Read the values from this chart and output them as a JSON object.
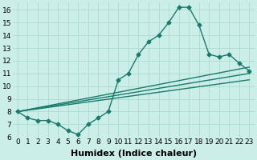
{
  "title": "",
  "xlabel": "Humidex (Indice chaleur)",
  "ylabel": "",
  "bg_color": "#cceee8",
  "line_color": "#1a7a6e",
  "grid_color": "#aaddcc",
  "xlim": [
    -0.5,
    23.5
  ],
  "ylim": [
    6,
    16.6
  ],
  "xticks": [
    0,
    1,
    2,
    3,
    4,
    5,
    6,
    7,
    8,
    9,
    10,
    11,
    12,
    13,
    14,
    15,
    16,
    17,
    18,
    19,
    20,
    21,
    22,
    23
  ],
  "yticks": [
    6,
    7,
    8,
    9,
    10,
    11,
    12,
    13,
    14,
    15,
    16
  ],
  "main_curve": [
    8.0,
    7.5,
    7.3,
    7.3,
    7.0,
    6.5,
    6.2,
    7.0,
    7.5,
    8.0,
    10.5,
    11.0,
    12.5,
    13.5,
    14.0,
    15.0,
    16.2,
    16.2,
    14.8,
    12.5,
    12.3,
    12.5,
    11.8,
    11.2
  ],
  "linear_lines": [
    {
      "x0": 0,
      "y0": 8.0,
      "x1": 23,
      "y1": 10.5
    },
    {
      "x0": 0,
      "y0": 8.0,
      "x1": 23,
      "y1": 11.0
    },
    {
      "x0": 0,
      "y0": 8.0,
      "x1": 23,
      "y1": 11.5
    }
  ],
  "marker": "D",
  "markersize": 2.5,
  "linewidth": 1.0,
  "xlabel_fontsize": 8,
  "tick_fontsize": 6.5,
  "figsize": [
    3.2,
    2.0
  ],
  "dpi": 100
}
